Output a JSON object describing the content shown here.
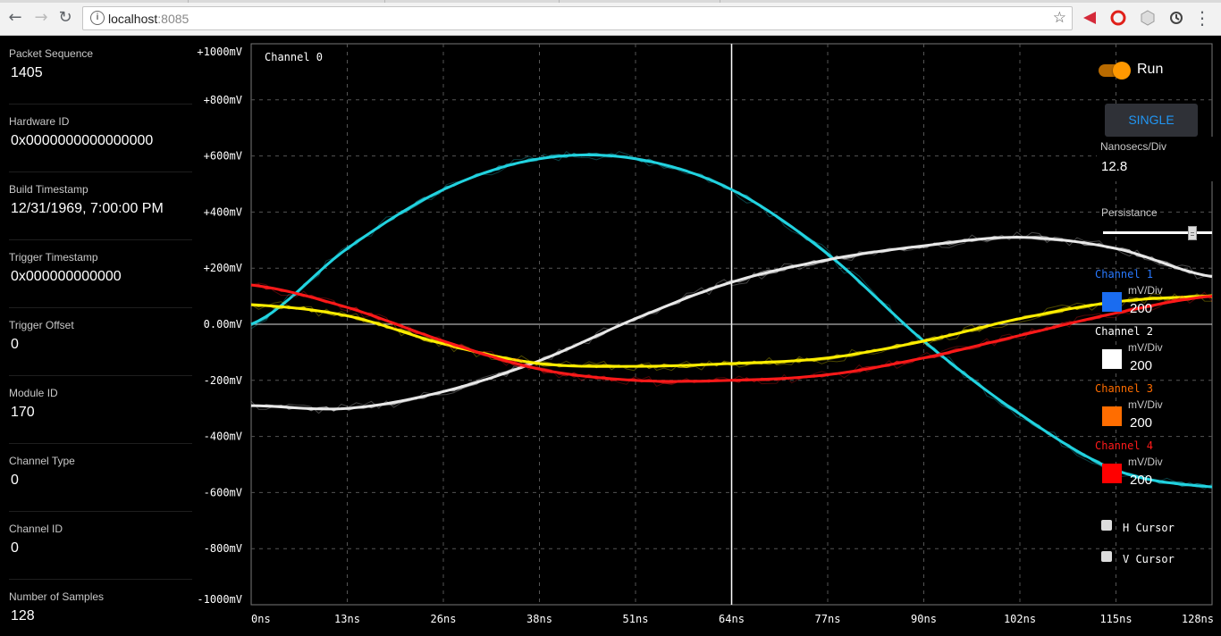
{
  "browser": {
    "url_host": "localhost",
    "url_port": ":8085"
  },
  "info": {
    "fields": [
      {
        "label": "Packet Sequence",
        "value": "1405"
      },
      {
        "label": "Hardware ID",
        "value": "0x0000000000000000"
      },
      {
        "label": "Build Timestamp",
        "value": "12/31/1969, 7:00:00 PM"
      },
      {
        "label": "Trigger Timestamp",
        "value": "0x000000000000"
      },
      {
        "label": "Trigger Offset",
        "value": "0"
      },
      {
        "label": "Module ID",
        "value": "170"
      },
      {
        "label": "Channel Type",
        "value": "0"
      },
      {
        "label": "Channel ID",
        "value": "0"
      },
      {
        "label": "Number of Samples",
        "value": "128"
      }
    ]
  },
  "scope": {
    "channel_title": "Channel 0",
    "y_labels": [
      "+1000mV",
      "+800mV",
      "+600mV",
      "+400mV",
      "+200mV",
      "0.00mV",
      "-200mV",
      "-400mV",
      "-600mV",
      "-800mV",
      "-1000mV"
    ],
    "x_labels": [
      "0ns",
      "13ns",
      "26ns",
      "38ns",
      "51ns",
      "64ns",
      "77ns",
      "90ns",
      "102ns",
      "115ns",
      "128ns"
    ]
  },
  "controls": {
    "run_label": "Run",
    "run_on": true,
    "single_label": "SINGLE",
    "ns_per_div_label": "Nanosecs/Div",
    "ns_per_div_value": "12.8",
    "persistance_label": "Persistance",
    "channels": [
      {
        "name": "Channel 1",
        "unit_label": "mV/Div",
        "value": "200",
        "color": "#2979ff",
        "swatch": "#1a6cf0"
      },
      {
        "name": "Channel 2",
        "unit_label": "mV/Div",
        "value": "200",
        "color": "#ffffff",
        "swatch": "#ffffff"
      },
      {
        "name": "Channel 3",
        "unit_label": "mV/Div",
        "value": "200",
        "color": "#ff6d00",
        "swatch": "#ff6d00"
      },
      {
        "name": "Channel 4",
        "unit_label": "mV/Div",
        "value": "200",
        "color": "#ff1a1a",
        "swatch": "#ff0000"
      }
    ],
    "h_cursor_label": "H Cursor",
    "v_cursor_label": "V Cursor"
  },
  "chart_data": {
    "type": "line",
    "title": "Channel 0",
    "xlabel": "",
    "ylabel": "",
    "x_unit": "ns",
    "y_unit": "mV",
    "xlim": [
      0,
      128
    ],
    "ylim": [
      -1000,
      1000
    ],
    "grid": true,
    "x": [
      0,
      12.8,
      25.6,
      38.4,
      51.2,
      64,
      76.8,
      89.6,
      102.4,
      115.2,
      128
    ],
    "series": [
      {
        "color": "#22d3e0",
        "values": [
          0,
          270,
          480,
          590,
          590,
          480,
          250,
          -60,
          -320,
          -520,
          -580
        ]
      },
      {
        "color": "#e8e8e8",
        "values": [
          -290,
          -300,
          -240,
          -130,
          20,
          150,
          230,
          280,
          310,
          270,
          170
        ]
      },
      {
        "color": "#ffee00",
        "values": [
          70,
          30,
          -70,
          -140,
          -150,
          -140,
          -120,
          -60,
          20,
          80,
          100
        ]
      },
      {
        "color": "#ff1a1a",
        "values": [
          140,
          60,
          -60,
          -160,
          -200,
          -200,
          -180,
          -120,
          -40,
          40,
          100
        ]
      }
    ]
  }
}
